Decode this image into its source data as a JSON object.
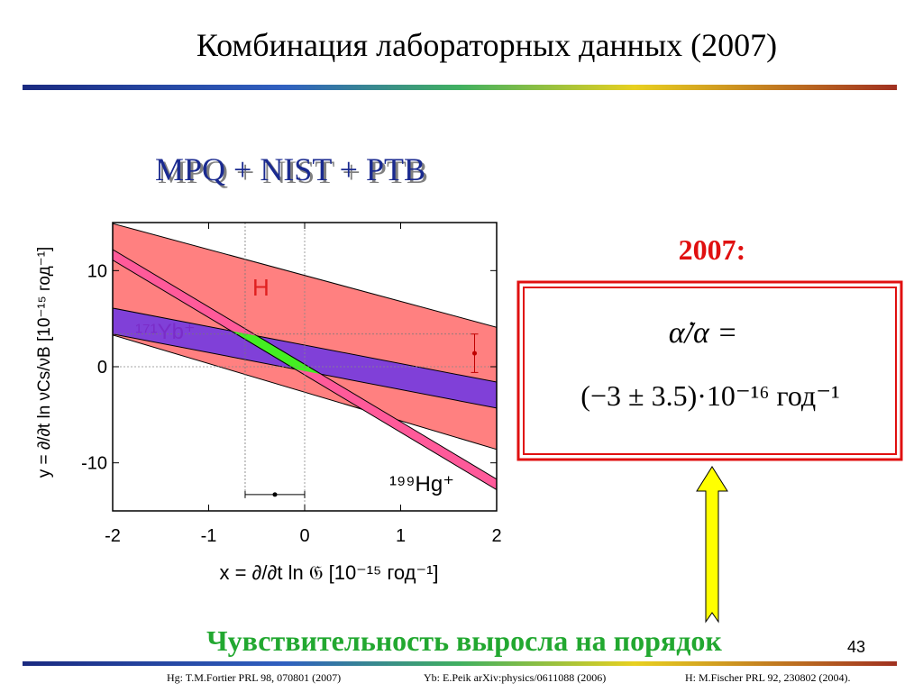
{
  "slide": {
    "title": "Комбинация лабораторных данных (2007)",
    "subtitle": "MPQ + NIST + PTB",
    "year_label": "2007:",
    "formula_line1": "α̇/α =",
    "formula_line2": "(−3 ± 3.5)·10⁻¹⁶  год⁻¹",
    "conclusion": "Чувствительность выросла на порядок",
    "page_number": "43",
    "references": [
      "Hg: T.M.Fortier PRL 98, 070801 (2007)",
      "Yb: E.Peik arXiv:physics/0611088 (2006)",
      "H: M.Fischer PRL 92, 230802 (2004)."
    ]
  },
  "chart_data": {
    "type": "band",
    "x": [
      -2,
      2
    ],
    "series": [
      {
        "name": "H",
        "color": "#ff8080",
        "label_color": "#e02020",
        "upper": [
          14.9,
          4.1
        ],
        "lower": [
          3.3,
          -8.6
        ]
      },
      {
        "name": "¹⁷¹Yb⁺",
        "color": "#8040d8",
        "label_color": "#7a2cc8",
        "upper": [
          6.1,
          -1.6
        ],
        "lower": [
          3.4,
          -4.3
        ]
      },
      {
        "name": "¹⁹⁹Hg⁺",
        "color": "#ff5a9a",
        "label_color": "#000000",
        "upper": [
          12.2,
          -11.7
        ],
        "lower": [
          11.1,
          -12.8
        ]
      }
    ],
    "overlap_color": "#44ee22",
    "points": [
      {
        "x": -0.31,
        "y": -13.3,
        "xerr": 0.31
      },
      {
        "x": 1.77,
        "y": 1.4,
        "yerr": 2.0
      }
    ],
    "xlim": [
      -2,
      2
    ],
    "ylim": [
      -15,
      15
    ],
    "xticks": [
      -2,
      -1,
      0,
      1,
      2
    ],
    "yticks": [
      -10,
      0,
      10
    ],
    "xlabel": "x = ∂/∂t ln 𝔊  [10⁻¹⁵ год⁻¹]",
    "ylabel": "y = ∂/∂t ln νCs/νB  [10⁻¹⁵ год⁻¹]",
    "zero_lines": true
  }
}
